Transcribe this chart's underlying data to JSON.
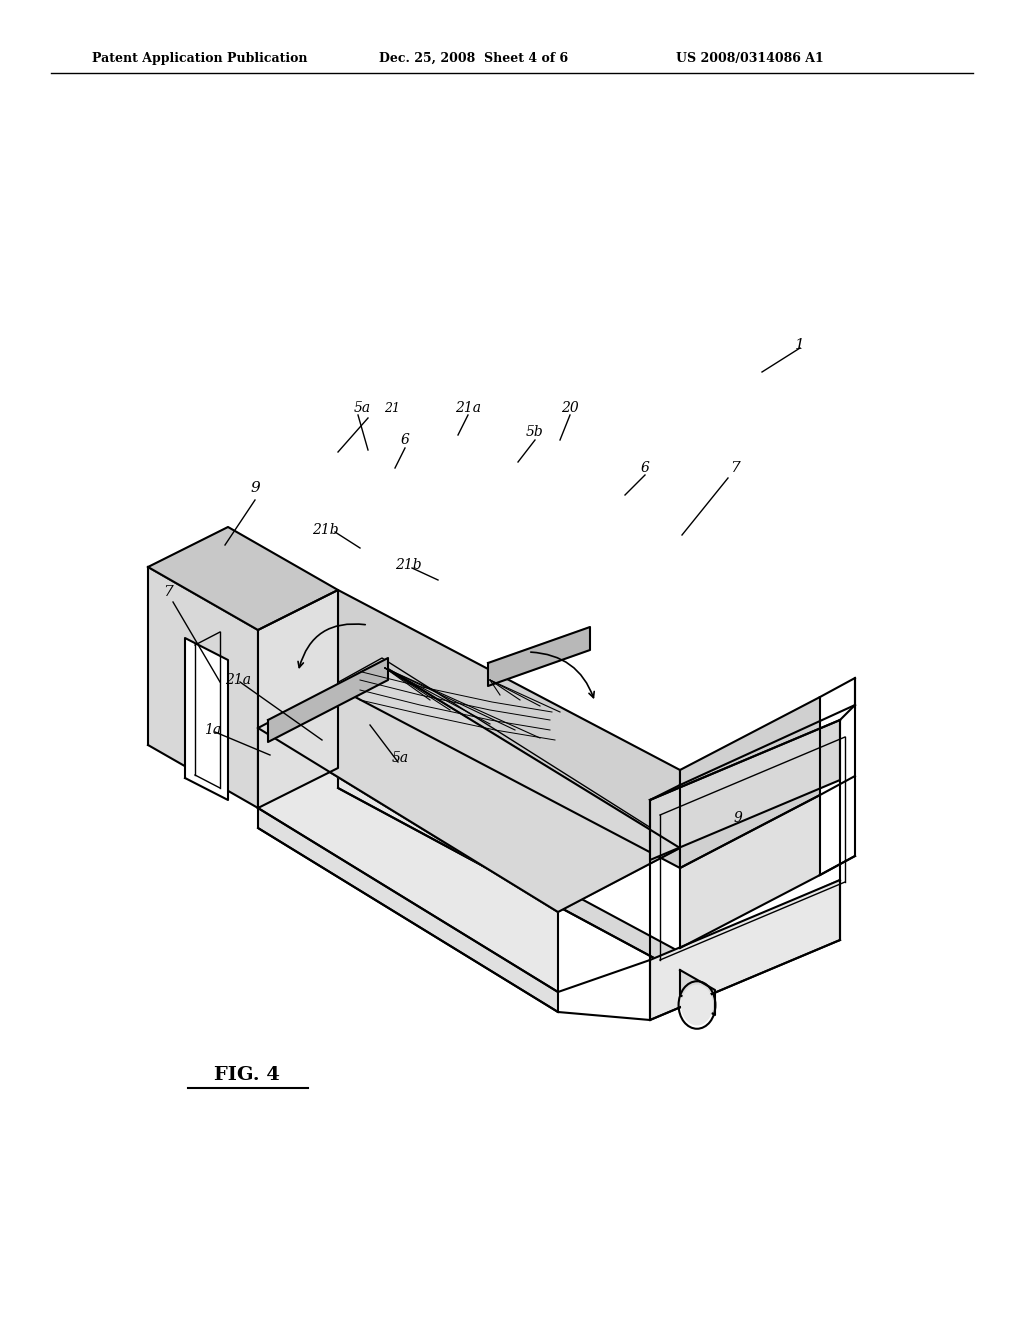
{
  "background_color": "#ffffff",
  "header_left": "Patent Application Publication",
  "header_center": "Dec. 25, 2008  Sheet 4 of 6",
  "header_right": "US 2008/0314086 A1",
  "figure_label": "FIG. 4"
}
